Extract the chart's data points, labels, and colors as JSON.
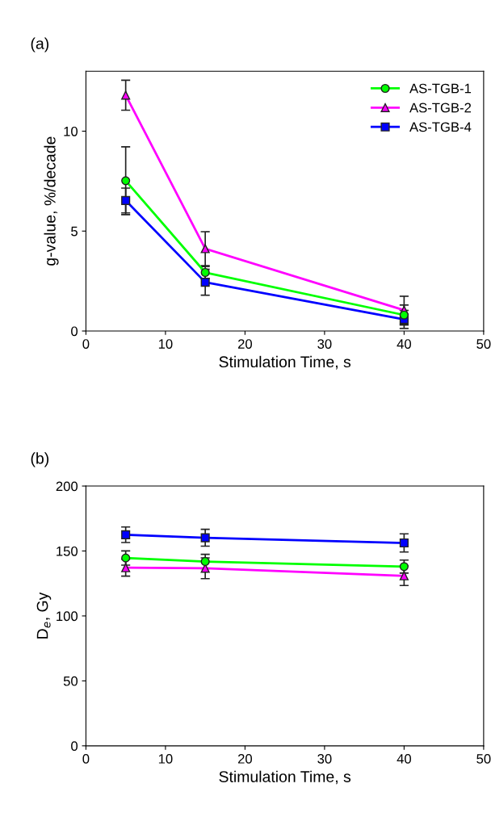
{
  "chart_data": [
    {
      "type": "line",
      "title": "(a)",
      "xlabel": "Stimulation Time, s",
      "ylabel": "g-value, %/decade",
      "x": [
        5,
        15,
        40
      ],
      "xlim": [
        0,
        50
      ],
      "xticks": [
        0,
        10,
        20,
        30,
        40,
        50
      ],
      "ylim": [
        0,
        13
      ],
      "yticks": [
        0,
        5,
        10
      ],
      "grid": false,
      "legend": "top right",
      "series": [
        {
          "name": "AS-TGB-1",
          "color": "#00ff00",
          "marker": "circle",
          "values": [
            7.52,
            2.93,
            0.8
          ],
          "errors": [
            1.7,
            0.3,
            0.5
          ]
        },
        {
          "name": "AS-TGB-2",
          "color": "#ff00ff",
          "marker": "triangle",
          "values": [
            11.8,
            4.12,
            1.04
          ],
          "errors": [
            0.75,
            0.85,
            0.7
          ]
        },
        {
          "name": "AS-TGB-4",
          "color": "#0000ff",
          "marker": "square",
          "values": [
            6.53,
            2.44,
            0.58
          ],
          "errors": [
            0.62,
            0.65,
            0.45
          ]
        }
      ]
    },
    {
      "type": "line",
      "title": "(b)",
      "xlabel": "Stimulation Time, s",
      "ylabel": "D$_{e}$, Gy",
      "x": [
        5,
        15,
        40
      ],
      "xlim": [
        0,
        50
      ],
      "xticks": [
        0,
        10,
        20,
        30,
        40,
        50
      ],
      "ylim": [
        0,
        200
      ],
      "yticks": [
        0,
        50,
        100,
        150,
        200
      ],
      "grid": false,
      "series": [
        {
          "color": "#0000ff",
          "marker": "square",
          "values": [
            162.5,
            160.2,
            156.2
          ],
          "errors": [
            6,
            6.5,
            7
          ]
        },
        {
          "color": "#00ff00",
          "marker": "circle",
          "values": [
            144.6,
            141.9,
            138
          ],
          "errors": [
            5.5,
            5.5,
            5
          ]
        },
        {
          "color": "#ff00ff",
          "marker": "triangle",
          "values": [
            137.1,
            136.7,
            130.9
          ],
          "errors": [
            6.5,
            8,
            7.5
          ]
        }
      ]
    }
  ]
}
